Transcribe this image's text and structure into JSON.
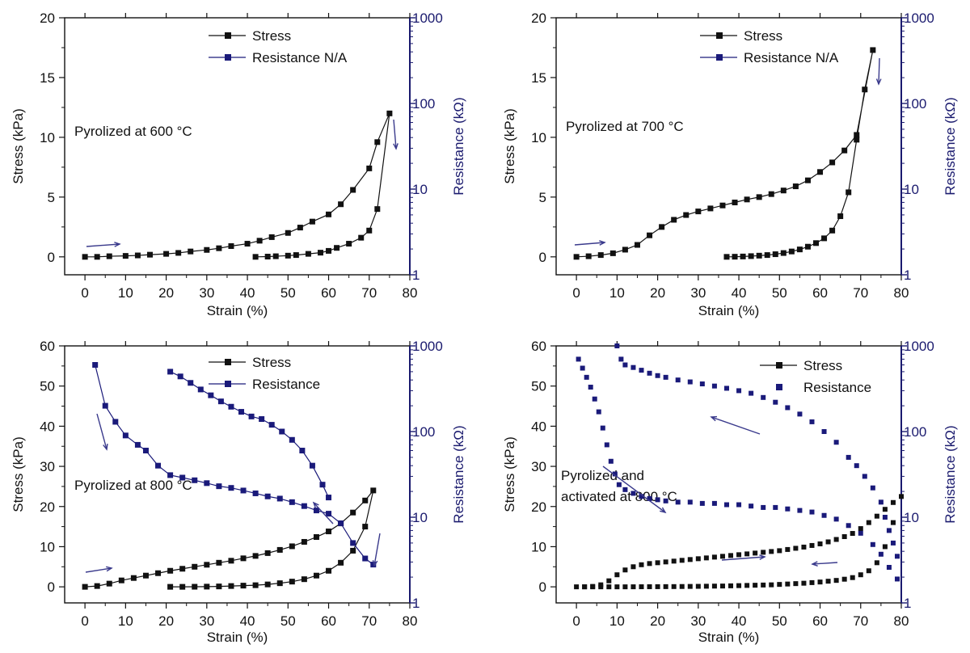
{
  "colors": {
    "stress": "#111111",
    "resistance": "#1a1a7a",
    "axis_right": "#1a1a6e",
    "arrow": "#3a3a8c"
  },
  "chart_data": [
    {
      "type": "line",
      "annotation": "Pyrolized at 600 °C",
      "xlabel": "Strain (%)",
      "ylabel": "Stress (kPa)",
      "y2label": "Resistance (kΩ)",
      "xlim": [
        -5,
        80
      ],
      "ylim": [
        -1.5,
        20
      ],
      "y2lim": [
        1,
        1000
      ],
      "y2scale": "log",
      "xticks": [
        0,
        10,
        20,
        30,
        40,
        50,
        60,
        70,
        80
      ],
      "yticks": [
        0,
        5,
        10,
        15,
        20
      ],
      "y2ticks": [
        1,
        10,
        100,
        1000
      ],
      "legend": [
        "Stress",
        "Resistance N/A"
      ],
      "series": [
        {
          "name": "Stress",
          "axis": "left",
          "x": [
            0,
            3,
            6,
            10,
            13,
            16,
            20,
            23,
            26,
            30,
            33,
            36,
            40,
            43,
            46,
            50,
            53,
            56,
            60,
            63,
            66,
            70,
            72,
            75,
            72,
            70,
            68,
            65,
            62,
            60,
            58,
            55,
            52,
            50,
            47,
            45,
            42
          ],
          "y": [
            0,
            0,
            0.05,
            0.08,
            0.12,
            0.18,
            0.25,
            0.33,
            0.45,
            0.58,
            0.72,
            0.9,
            1.1,
            1.35,
            1.65,
            2.0,
            2.45,
            2.95,
            3.55,
            4.4,
            5.6,
            7.4,
            9.6,
            12.0,
            4.0,
            2.2,
            1.6,
            1.1,
            0.75,
            0.5,
            0.35,
            0.25,
            0.15,
            0.1,
            0.05,
            0.02,
            0
          ]
        }
      ]
    },
    {
      "type": "line",
      "annotation": "Pyrolized at 700 °C",
      "xlabel": "Strain (%)",
      "ylabel": "Stress (kPa)",
      "y2label": "Resistance (kΩ)",
      "xlim": [
        -5,
        80
      ],
      "ylim": [
        -1.5,
        20
      ],
      "y2lim": [
        1,
        1000
      ],
      "y2scale": "log",
      "xticks": [
        0,
        10,
        20,
        30,
        40,
        50,
        60,
        70,
        80
      ],
      "yticks": [
        0,
        5,
        10,
        15,
        20
      ],
      "y2ticks": [
        1,
        10,
        100,
        1000
      ],
      "legend": [
        "Stress",
        "Resistance N/A"
      ],
      "series": [
        {
          "name": "Stress",
          "axis": "left",
          "x": [
            0,
            3,
            6,
            9,
            12,
            15,
            18,
            21,
            24,
            27,
            30,
            33,
            36,
            39,
            42,
            45,
            48,
            51,
            54,
            57,
            60,
            63,
            66,
            69,
            73,
            71,
            69,
            67,
            65,
            63,
            61,
            59,
            57,
            55,
            53,
            51,
            49,
            47,
            45,
            43,
            41,
            39,
            37
          ],
          "y": [
            0,
            0.05,
            0.15,
            0.3,
            0.6,
            1.0,
            1.8,
            2.5,
            3.1,
            3.5,
            3.8,
            4.05,
            4.3,
            4.55,
            4.8,
            5.0,
            5.25,
            5.55,
            5.9,
            6.4,
            7.1,
            7.9,
            8.9,
            10.2,
            17.3,
            14.0,
            9.8,
            5.4,
            3.4,
            2.2,
            1.55,
            1.15,
            0.85,
            0.62,
            0.45,
            0.32,
            0.22,
            0.15,
            0.1,
            0.06,
            0.03,
            0.01,
            0
          ]
        }
      ]
    },
    {
      "type": "line",
      "annotation": "Pyrolized at 800 °C",
      "xlabel": "Strain (%)",
      "ylabel": "Stress (kPa)",
      "y2label": "Resistance (kΩ)",
      "xlim": [
        -5,
        80
      ],
      "ylim": [
        -4,
        60
      ],
      "y2lim": [
        1,
        1000
      ],
      "y2scale": "log",
      "xticks": [
        0,
        10,
        20,
        30,
        40,
        50,
        60,
        70,
        80
      ],
      "yticks": [
        0,
        10,
        20,
        30,
        40,
        50,
        60
      ],
      "y2ticks": [
        1,
        10,
        100,
        1000
      ],
      "legend": [
        "Stress",
        "Resistance"
      ],
      "series": [
        {
          "name": "Stress",
          "axis": "left",
          "x": [
            0,
            3,
            6,
            9,
            12,
            15,
            18,
            21,
            24,
            27,
            30,
            33,
            36,
            39,
            42,
            45,
            48,
            51,
            54,
            57,
            60,
            63,
            66,
            69,
            71,
            69,
            66,
            63,
            60,
            57,
            54,
            51,
            48,
            45,
            42,
            39,
            36,
            33,
            30,
            27,
            24,
            21
          ],
          "y": [
            0,
            0.2,
            0.8,
            1.6,
            2.2,
            2.8,
            3.4,
            4.0,
            4.5,
            5.0,
            5.5,
            6.0,
            6.5,
            7.1,
            7.7,
            8.4,
            9.2,
            10.1,
            11.2,
            12.4,
            13.8,
            15.8,
            18.5,
            21.5,
            24.0,
            15.0,
            9.0,
            6.0,
            4.0,
            2.8,
            1.9,
            1.3,
            0.9,
            0.6,
            0.4,
            0.3,
            0.2,
            0.1,
            0.05,
            0.02,
            0,
            0
          ]
        },
        {
          "name": "Resistance",
          "axis": "right",
          "x": [
            2.5,
            5,
            7.5,
            10,
            13,
            15,
            18,
            21,
            24,
            27,
            30,
            33,
            36,
            39,
            42,
            45,
            48,
            51,
            54,
            57,
            60,
            63,
            66,
            69,
            71
          ],
          "y": [
            600,
            200,
            130,
            90,
            70,
            60,
            40,
            31,
            29,
            27,
            25,
            23,
            22,
            20.5,
            19,
            17.5,
            16.5,
            15,
            13.5,
            12,
            11,
            8.5,
            5,
            3.3,
            2.8
          ]
        },
        {
          "name": "Resistance",
          "axis": "right",
          "x": [
            21,
            23.5,
            26,
            28.5,
            31,
            33.5,
            36,
            38.5,
            41,
            43.5,
            46,
            48.5,
            51,
            53.5,
            56,
            58.5,
            60
          ],
          "y": [
            500,
            440,
            370,
            310,
            265,
            225,
            195,
            170,
            150,
            140,
            120,
            100,
            80,
            60,
            40,
            24,
            17
          ]
        }
      ]
    },
    {
      "type": "scatter",
      "annotation": "Pyrolized and activated at 800 °C",
      "xlabel": "Strain (%)",
      "ylabel": "Stress (kPa)",
      "y2label": "Resistance (kΩ)",
      "xlim": [
        -5,
        80
      ],
      "ylim": [
        -4,
        60
      ],
      "y2lim": [
        1,
        1000
      ],
      "y2scale": "log",
      "xticks": [
        0,
        10,
        20,
        30,
        40,
        50,
        60,
        70,
        80
      ],
      "yticks": [
        0,
        10,
        20,
        30,
        40,
        50,
        60
      ],
      "y2ticks": [
        1,
        10,
        100,
        1000
      ],
      "legend": [
        "Stress",
        "Resistance"
      ],
      "series": [
        {
          "name": "Stress",
          "axis": "left",
          "x": [
            0,
            2,
            4,
            6,
            8,
            10,
            12,
            14,
            16,
            18,
            20,
            22,
            24,
            26,
            28,
            30,
            32,
            34,
            36,
            38,
            40,
            42,
            44,
            46,
            48,
            50,
            52,
            54,
            56,
            58,
            60,
            62,
            64,
            66,
            68,
            70,
            72,
            74,
            76,
            78,
            80,
            78,
            76,
            74,
            72,
            70,
            68,
            66,
            64,
            62,
            60,
            58,
            56,
            54,
            52,
            50,
            48,
            46,
            44,
            42,
            40,
            38,
            36,
            34,
            32,
            30,
            28,
            26,
            24,
            22,
            20,
            18,
            16,
            14,
            12,
            10,
            8,
            6,
            4,
            2
          ],
          "y": [
            0,
            0,
            0.1,
            0.5,
            1.5,
            3.0,
            4.2,
            5.0,
            5.5,
            5.8,
            6.0,
            6.2,
            6.4,
            6.6,
            6.8,
            7.0,
            7.2,
            7.4,
            7.6,
            7.8,
            8.0,
            8.2,
            8.4,
            8.6,
            8.8,
            9.0,
            9.3,
            9.6,
            9.9,
            10.3,
            10.7,
            11.2,
            11.8,
            12.5,
            13.3,
            14.5,
            16.0,
            17.6,
            19.3,
            21.0,
            22.5,
            16.0,
            10.0,
            6.0,
            4.0,
            3.0,
            2.3,
            1.9,
            1.6,
            1.4,
            1.2,
            1.05,
            0.9,
            0.8,
            0.7,
            0.6,
            0.5,
            0.45,
            0.4,
            0.35,
            0.3,
            0.25,
            0.2,
            0.18,
            0.15,
            0.12,
            0.1,
            0.08,
            0.06,
            0.05,
            0.04,
            0.03,
            0.02,
            0.01,
            0,
            0,
            0,
            0,
            0,
            0
          ]
        },
        {
          "name": "Resistance",
          "axis": "right",
          "x": [
            0.5,
            1.5,
            2.5,
            3.5,
            4.5,
            5.5,
            6.5,
            7.5,
            8.5,
            9.5,
            10.5,
            12,
            14,
            16,
            18,
            20,
            22,
            25,
            28,
            31,
            34,
            37,
            40,
            43,
            46,
            49,
            52,
            55,
            58,
            61,
            64,
            67,
            70,
            73,
            75,
            77,
            79
          ],
          "y": [
            700,
            550,
            430,
            330,
            240,
            170,
            110,
            70,
            45,
            32,
            24,
            21,
            19,
            17.5,
            16.5,
            16,
            15.5,
            15,
            15,
            14.5,
            14.5,
            14,
            14,
            13.5,
            13,
            13,
            12.5,
            12,
            11.5,
            10.5,
            9.5,
            8,
            6.5,
            4.8,
            3.7,
            2.6,
            1.9
          ]
        },
        {
          "name": "Resistance",
          "axis": "right",
          "x": [
            10,
            11,
            12,
            14,
            16,
            18,
            20,
            22,
            25,
            28,
            31,
            34,
            37,
            40,
            43,
            46,
            49,
            52,
            55,
            58,
            61,
            64,
            67,
            69,
            71,
            73,
            75,
            76,
            77,
            78,
            79
          ],
          "y": [
            1000,
            700,
            600,
            560,
            520,
            480,
            450,
            430,
            400,
            380,
            360,
            340,
            320,
            300,
            280,
            250,
            220,
            190,
            160,
            130,
            100,
            75,
            50,
            40,
            30,
            22,
            15,
            10,
            7,
            5,
            3.5
          ]
        }
      ]
    }
  ]
}
